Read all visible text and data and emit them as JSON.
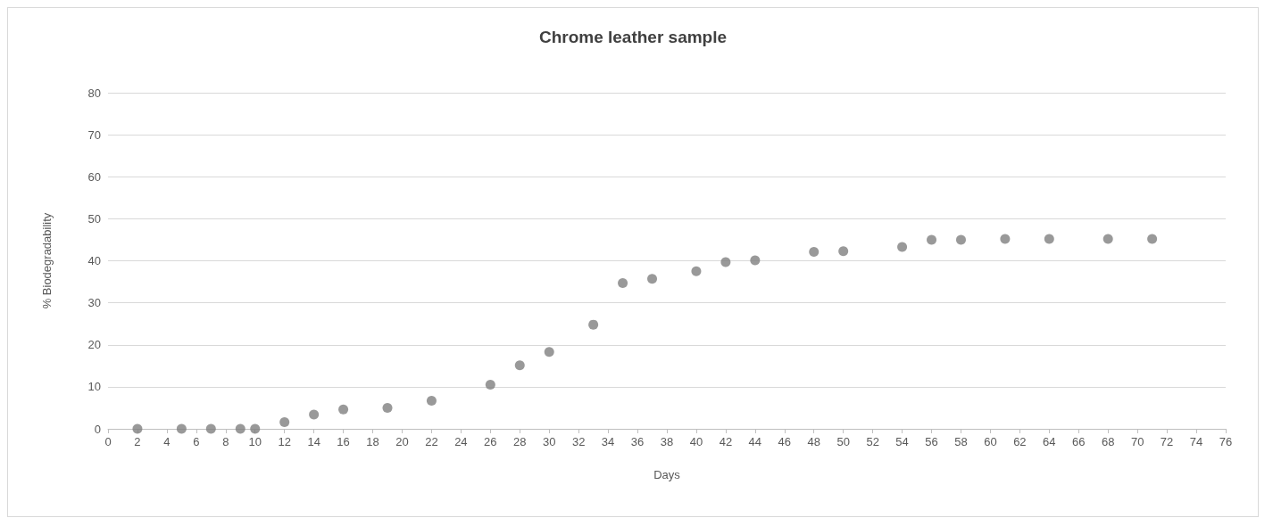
{
  "chart_data": {
    "type": "scatter",
    "title": "Chrome leather sample",
    "xlabel": "Days",
    "ylabel": "% Biodegradability",
    "x": [
      2,
      5,
      7,
      9,
      10,
      12,
      14,
      16,
      19,
      22,
      26,
      28,
      30,
      33,
      35,
      37,
      40,
      42,
      44,
      48,
      50,
      54,
      56,
      58,
      61,
      64,
      68,
      71
    ],
    "series": [
      {
        "color": "#7f7f7f",
        "values": [
          0,
          0,
          0,
          0,
          0,
          1.6,
          3.4,
          4.6,
          5,
          6.7,
          10.5,
          15.1,
          18.3,
          24.8,
          34.7,
          35.7,
          37.5,
          39.7,
          40.1,
          42.1,
          42.3,
          43.3,
          45,
          45,
          45.2,
          45.2,
          45.2,
          45.2
        ]
      }
    ],
    "xlim": [
      0,
      76
    ],
    "xticks": [
      0,
      2,
      4,
      6,
      8,
      10,
      12,
      14,
      16,
      18,
      20,
      22,
      24,
      26,
      28,
      30,
      32,
      34,
      36,
      38,
      40,
      42,
      44,
      46,
      48,
      50,
      52,
      54,
      56,
      58,
      60,
      62,
      64,
      66,
      68,
      70,
      72,
      74,
      76
    ],
    "ylim": [
      0,
      80
    ],
    "yticks": [
      0,
      10,
      20,
      30,
      40,
      50,
      60,
      70,
      80
    ],
    "grid": "y",
    "marker": "circle"
  }
}
